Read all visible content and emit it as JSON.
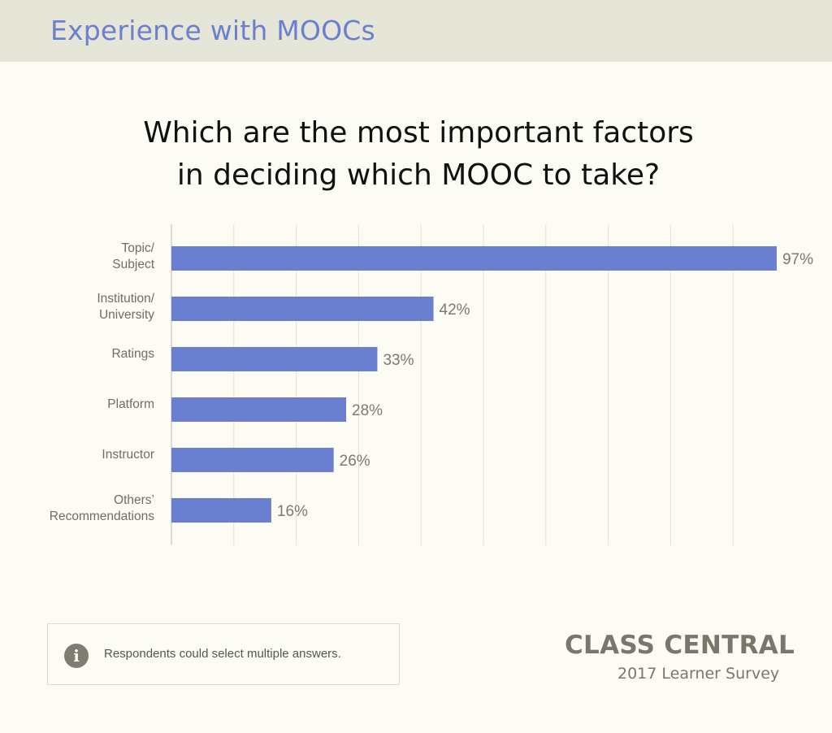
{
  "header": {
    "title": "Experience with MOOCs"
  },
  "chart_data": {
    "type": "bar",
    "orientation": "horizontal",
    "title_lines": [
      "Which are the most important factors",
      "in deciding which MOOC to take?"
    ],
    "categories": [
      [
        "Topic/",
        "Subject"
      ],
      [
        "Institution/",
        "University"
      ],
      [
        "Ratings"
      ],
      [
        "Platform"
      ],
      [
        "Instructor"
      ],
      [
        "Others’",
        "Recommendations"
      ]
    ],
    "values": [
      97,
      42,
      33,
      28,
      26,
      16
    ],
    "value_labels": [
      "97%",
      "42%",
      "33%",
      "28%",
      "26%",
      "16%"
    ],
    "xlim": [
      0,
      90
    ],
    "grid": true,
    "bar_color": "#6a7fcf"
  },
  "note": {
    "text": "Respondents could select multiple answers."
  },
  "brand": {
    "name": "CLASS CENTRAL",
    "subtitle": "2017 Learner Survey"
  }
}
